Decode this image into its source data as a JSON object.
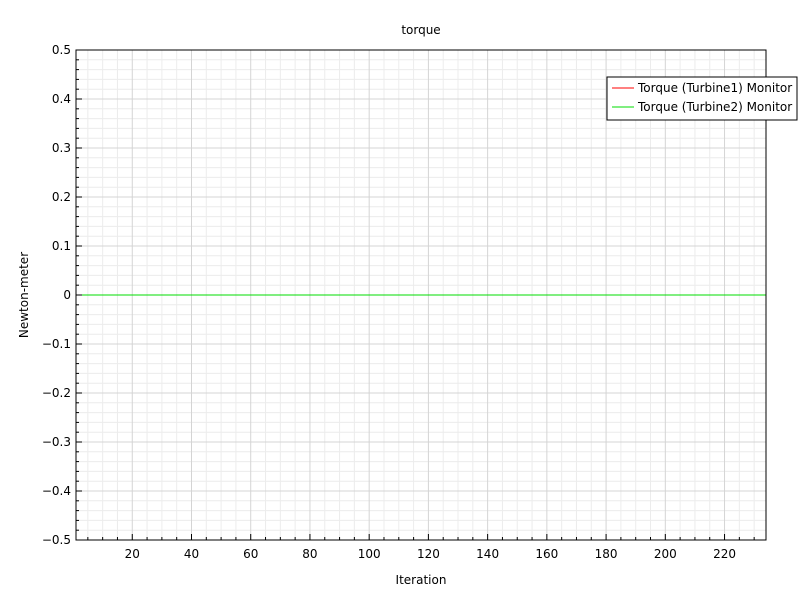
{
  "chart_data": {
    "type": "line",
    "title": "torque",
    "xlabel": "Iteration",
    "ylabel": "Newton-meter",
    "xlim": [
      1,
      234
    ],
    "ylim": [
      -0.5,
      0.5
    ],
    "x_ticks": [
      20,
      40,
      60,
      80,
      100,
      120,
      140,
      160,
      180,
      200,
      220
    ],
    "y_ticks": [
      0.5,
      0.4,
      0.3,
      0.2,
      0.1,
      0,
      -0.1,
      -0.2,
      -0.3,
      -0.4,
      -0.5
    ],
    "y_tick_labels": [
      "0.5",
      "0.4",
      "0.3",
      "0.2",
      "0.1",
      "0",
      "−0.1",
      "−0.2",
      "−0.3",
      "−0.4",
      "−0.5"
    ],
    "grid": true,
    "legend_position": "top-right",
    "series": [
      {
        "name": "Torque (Turbine1) Monitor",
        "color": "#ff0000",
        "x": [
          1,
          234
        ],
        "y": [
          0,
          0
        ]
      },
      {
        "name": "Torque (Turbine2) Monitor",
        "color": "#00dd00",
        "x": [
          1,
          234
        ],
        "y": [
          0,
          0
        ]
      }
    ]
  }
}
